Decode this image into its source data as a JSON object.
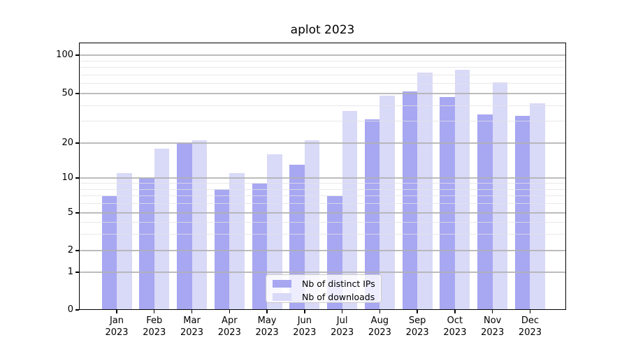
{
  "chart_data": {
    "type": "bar",
    "title": "aplot 2023",
    "categories": [
      "Jan",
      "Feb",
      "Mar",
      "Apr",
      "May",
      "Jun",
      "Jul",
      "Aug",
      "Sep",
      "Oct",
      "Nov",
      "Dec"
    ],
    "category_year_line": "2023",
    "series": [
      {
        "name": "Nb of distinct IPs",
        "color": "#a7a7f2",
        "values": [
          7,
          10,
          20,
          8,
          9,
          13,
          7,
          31,
          52,
          47,
          34,
          33
        ]
      },
      {
        "name": "Nb of downloads",
        "color": "#d9d9f8",
        "values": [
          11,
          18,
          21,
          11,
          16,
          21,
          36,
          48,
          73,
          77,
          61,
          42
        ]
      }
    ],
    "yscale": "symlog",
    "y_ticks": [
      0,
      1,
      2,
      5,
      10,
      20,
      50,
      100
    ],
    "y_minor_ticks": [
      3,
      4,
      6,
      7,
      8,
      9,
      30,
      40,
      60,
      70,
      80,
      90
    ],
    "ylim": [
      0,
      120
    ],
    "xlabel": "",
    "ylabel": "",
    "grid": true,
    "legend_position": "lower center",
    "grid_major_color": "#b0b0b0",
    "grid_minor_color": "#e2e2e2"
  }
}
